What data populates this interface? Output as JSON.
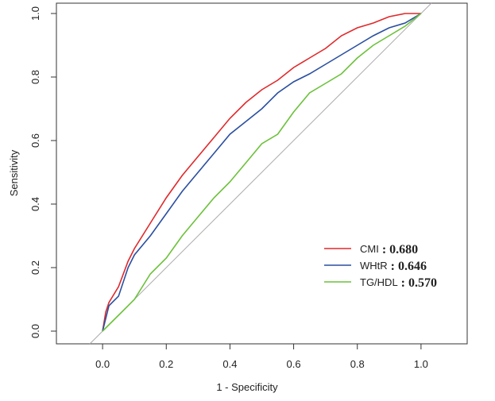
{
  "chart_data": {
    "type": "line",
    "xlabel": "1 - Specificity",
    "ylabel": "Sensitivity",
    "xlim": [
      -0.145,
      1.145
    ],
    "ylim": [
      -0.04,
      1.0325
    ],
    "xticks": [
      {
        "value": 0,
        "label": "0.0"
      },
      0.2,
      0.4,
      0.6,
      0.8,
      {
        "value": 1,
        "label": "1.0"
      }
    ],
    "yticks": [
      {
        "value": 0,
        "label": "0.0"
      },
      0.2,
      0.4,
      0.6,
      0.8,
      {
        "value": 1,
        "label": "1.0"
      }
    ],
    "reference_line": true,
    "legend": "lower right",
    "series": [
      {
        "name": "CMI",
        "auc_label": ": 0.680",
        "color": "#e0292b",
        "x": [
          0,
          0.01,
          0.02,
          0.05,
          0.08,
          0.1,
          0.15,
          0.2,
          0.25,
          0.3,
          0.35,
          0.4,
          0.45,
          0.5,
          0.55,
          0.6,
          0.65,
          0.7,
          0.75,
          0.8,
          0.85,
          0.9,
          0.95,
          1
        ],
        "values": [
          0,
          0.06,
          0.09,
          0.14,
          0.22,
          0.26,
          0.34,
          0.42,
          0.49,
          0.55,
          0.61,
          0.67,
          0.72,
          0.76,
          0.79,
          0.83,
          0.86,
          0.89,
          0.93,
          0.955,
          0.97,
          0.99,
          1,
          1
        ]
      },
      {
        "name": "WHtR",
        "auc_label": ": 0.646",
        "color": "#2a4fa0",
        "x": [
          0,
          0.02,
          0.05,
          0.08,
          0.1,
          0.15,
          0.2,
          0.25,
          0.3,
          0.35,
          0.4,
          0.45,
          0.5,
          0.55,
          0.6,
          0.65,
          0.7,
          0.75,
          0.8,
          0.85,
          0.9,
          0.95,
          1
        ],
        "values": [
          0,
          0.08,
          0.11,
          0.2,
          0.24,
          0.3,
          0.37,
          0.44,
          0.5,
          0.56,
          0.62,
          0.66,
          0.7,
          0.75,
          0.785,
          0.81,
          0.84,
          0.87,
          0.9,
          0.93,
          0.955,
          0.97,
          1
        ]
      },
      {
        "name": "TG/HDL",
        "auc_label": ": 0.570",
        "color": "#6cc13a",
        "x": [
          0,
          0.02,
          0.05,
          0.1,
          0.15,
          0.2,
          0.25,
          0.3,
          0.35,
          0.4,
          0.45,
          0.5,
          0.55,
          0.6,
          0.65,
          0.7,
          0.75,
          0.8,
          0.85,
          0.9,
          0.95,
          1
        ],
        "values": [
          0,
          0.02,
          0.05,
          0.1,
          0.18,
          0.23,
          0.3,
          0.36,
          0.42,
          0.47,
          0.53,
          0.59,
          0.62,
          0.69,
          0.75,
          0.78,
          0.81,
          0.86,
          0.9,
          0.93,
          0.96,
          1
        ]
      }
    ]
  }
}
